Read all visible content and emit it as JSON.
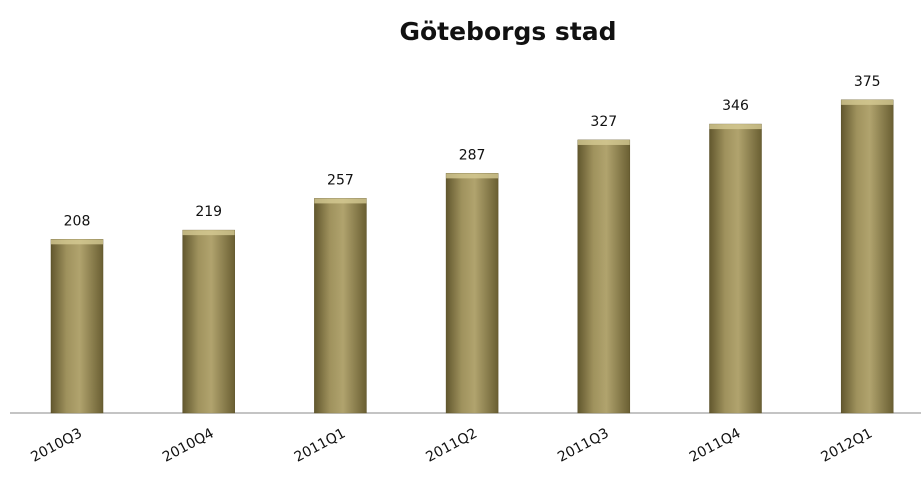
{
  "chart_data": {
    "type": "bar",
    "title": "Göteborgs stad",
    "categories": [
      "2010Q3",
      "2010Q4",
      "2011Q1",
      "2011Q2",
      "2011Q3",
      "2011Q4",
      "2012Q1"
    ],
    "values": [
      208,
      219,
      257,
      287,
      327,
      346,
      375
    ],
    "color": "#9a8c55"
  }
}
